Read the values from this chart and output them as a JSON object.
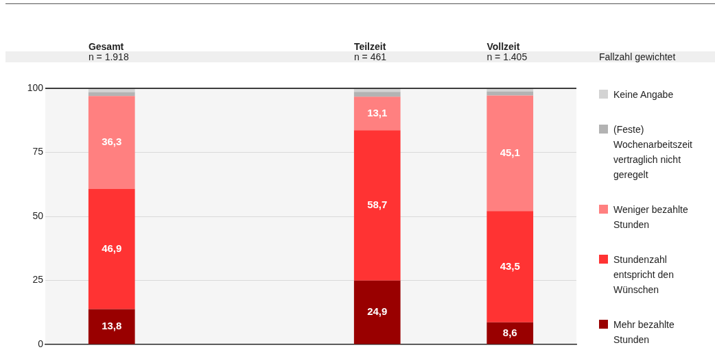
{
  "chart_data": {
    "type": "bar",
    "stacked": true,
    "categories": [
      "Gesamt\nn = 1.918",
      null,
      "Teilzeit\nn = 461",
      "Vollzeit\nn = 1.405"
    ],
    "series": [
      {
        "name": "Mehr bezahlte Stunden",
        "color": "#990000",
        "values": [
          13.8,
          null,
          24.9,
          8.6
        ],
        "value_labels": [
          "13,8",
          null,
          "24,9",
          "8,6"
        ]
      },
      {
        "name": "Stundenzahl entspricht den Wünschen",
        "color": "#ff3333",
        "values": [
          46.9,
          null,
          58.7,
          43.5
        ],
        "value_labels": [
          "46,9",
          null,
          "58,7",
          "43,5"
        ]
      },
      {
        "name": "Weniger bezahlte Stunden",
        "color": "#ff8080",
        "values": [
          36.3,
          null,
          13.1,
          45.1
        ],
        "value_labels": [
          "36,3",
          null,
          "13,1",
          "45,1"
        ]
      },
      {
        "name": "(Feste) Wochenarbeitszeit vertraglich nicht geregelt",
        "color": "#b3b3b3",
        "values": [
          1.5,
          null,
          1.9,
          1.6
        ]
      },
      {
        "name": "Keine Angabe",
        "color": "#d3d3d3",
        "values": [
          1.5,
          null,
          1.4,
          1.2
        ]
      }
    ],
    "ylim": [
      0,
      100
    ],
    "yticks": [
      0,
      25,
      50,
      75,
      100
    ],
    "grid": "y",
    "legend": "right",
    "annotations": [
      "Fallzahl gewichtet"
    ]
  }
}
